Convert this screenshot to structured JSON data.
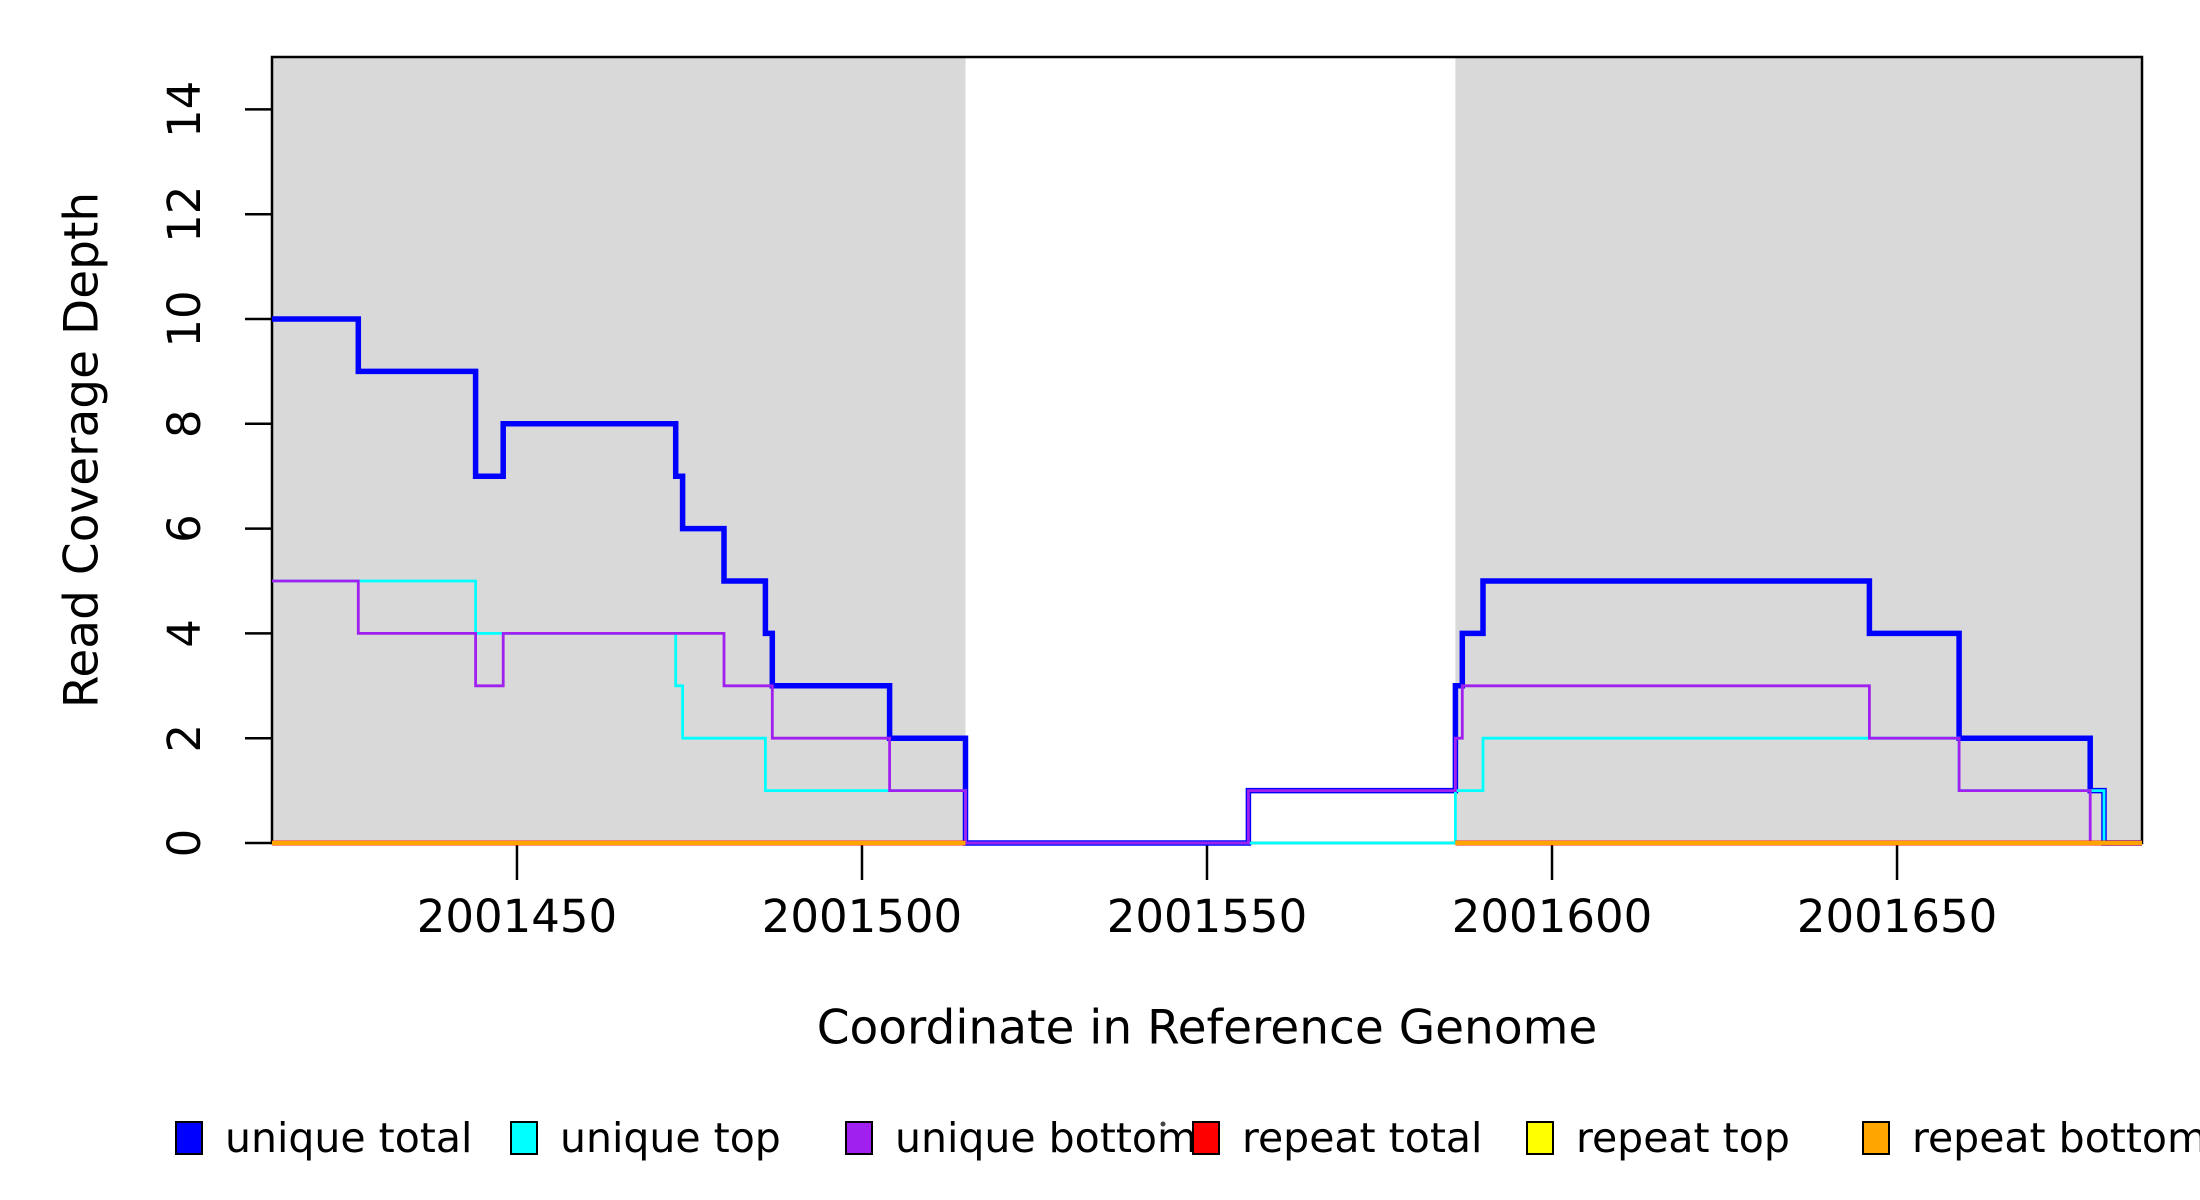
{
  "chart_data": {
    "type": "line",
    "subtype": "step-coverage",
    "title": "",
    "xlabel": "Coordinate in Reference Genome",
    "ylabel": "Read Coverage Depth",
    "xlim": [
      2001414.5,
      2001685.5
    ],
    "ylim": [
      0,
      15
    ],
    "x_ticks": [
      2001450,
      2001500,
      2001550,
      2001600,
      2001650
    ],
    "y_ticks": [
      0,
      2,
      4,
      6,
      8,
      10,
      12,
      14
    ],
    "grid": false,
    "plot_background": "#ffffff",
    "shaded_region_fill": "#d9d9d9",
    "shaded_regions": [
      {
        "name": "repeat-region-1",
        "from": 2001414.5,
        "to": 2001515
      },
      {
        "name": "repeat-region-2",
        "from": 2001586,
        "to": 2001685.5
      }
    ],
    "series": [
      {
        "name": "unique total",
        "color": "#0000ff",
        "width": 5.5,
        "kind": "step",
        "start_level": 10,
        "steps": [
          [
            2001427,
            9
          ],
          [
            2001444,
            7
          ],
          [
            2001448,
            8
          ],
          [
            2001473,
            7
          ],
          [
            2001474,
            6
          ],
          [
            2001480,
            5
          ],
          [
            2001486,
            4
          ],
          [
            2001487,
            3
          ],
          [
            2001504,
            2
          ],
          [
            2001515,
            0
          ],
          [
            2001556,
            1
          ],
          [
            2001586,
            3
          ],
          [
            2001587,
            4
          ],
          [
            2001590,
            5
          ],
          [
            2001646,
            4
          ],
          [
            2001659,
            2
          ],
          [
            2001678,
            1
          ],
          [
            2001680,
            0
          ]
        ]
      },
      {
        "name": "unique top",
        "color": "#00ffff",
        "width": 2.8,
        "kind": "step",
        "start_level": 5,
        "steps": [
          [
            2001444,
            4
          ],
          [
            2001473,
            3
          ],
          [
            2001474,
            2
          ],
          [
            2001486,
            1
          ],
          [
            2001515,
            0
          ],
          [
            2001586,
            1
          ],
          [
            2001590,
            2
          ],
          [
            2001659,
            1
          ],
          [
            2001680,
            0
          ]
        ]
      },
      {
        "name": "unique bottom",
        "color": "#a020f0",
        "width": 2.8,
        "kind": "step",
        "start_level": 5,
        "steps": [
          [
            2001427,
            4
          ],
          [
            2001444,
            3
          ],
          [
            2001448,
            4
          ],
          [
            2001480,
            3
          ],
          [
            2001487,
            2
          ],
          [
            2001504,
            1
          ],
          [
            2001515,
            0
          ],
          [
            2001556,
            1
          ],
          [
            2001586,
            2
          ],
          [
            2001587,
            3
          ],
          [
            2001646,
            2
          ],
          [
            2001659,
            1
          ],
          [
            2001678,
            0
          ]
        ]
      },
      {
        "name": "repeat total",
        "color": "#ff0000",
        "width": 5,
        "kind": "flat-segments",
        "level": 0,
        "segments": [
          [
            2001414.5,
            2001515
          ],
          [
            2001586,
            2001685.5
          ]
        ]
      },
      {
        "name": "repeat top",
        "color": "#ffff00",
        "width": 3.5,
        "kind": "flat-segments",
        "level": 0,
        "segments": [
          [
            2001414.5,
            2001515
          ],
          [
            2001586,
            2001685.5
          ]
        ]
      },
      {
        "name": "repeat bottom",
        "color": "#ffa500",
        "width": 4.2,
        "kind": "flat-segments",
        "level": 0,
        "segments": [
          [
            2001414.5,
            2001515
          ],
          [
            2001586,
            2001685.5
          ]
        ]
      }
    ],
    "legend": {
      "position": "bottom",
      "entries": [
        {
          "label": "unique total",
          "color": "#0000ff"
        },
        {
          "label": "unique top",
          "color": "#00ffff"
        },
        {
          "label": "unique bottom",
          "color": "#a020f0"
        },
        {
          "label": "repeat total",
          "color": "#ff0000"
        },
        {
          "label": "repeat top",
          "color": "#ffff00"
        },
        {
          "label": "repeat bottom",
          "color": "#ffa500"
        }
      ]
    },
    "axis_color": "#000000",
    "tick_label_color": "#000000"
  }
}
